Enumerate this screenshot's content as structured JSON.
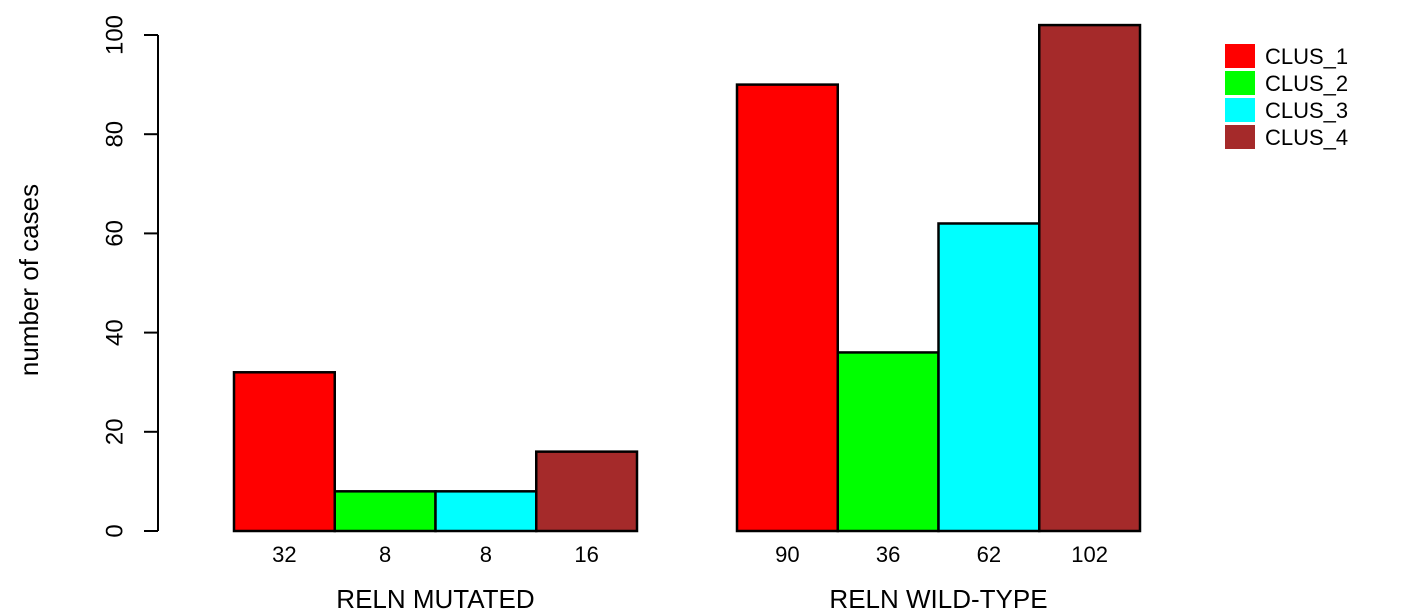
{
  "chart_data": {
    "type": "bar",
    "ylabel": "number of cases",
    "ylim": [
      0,
      100
    ],
    "yticks": [
      0,
      20,
      40,
      60,
      80,
      100
    ],
    "groups": [
      {
        "label": "RELN MUTATED",
        "values": [
          32,
          8,
          8,
          16
        ],
        "value_labels": [
          "32",
          "8",
          "8",
          "16"
        ]
      },
      {
        "label": "RELN WILD-TYPE",
        "values": [
          90,
          36,
          62,
          102
        ],
        "value_labels": [
          "90",
          "36",
          "62",
          "102"
        ]
      }
    ],
    "series": [
      {
        "name": "CLUS_1",
        "color": "#ff0000"
      },
      {
        "name": "CLUS_2",
        "color": "#00ff00"
      },
      {
        "name": "CLUS_3",
        "color": "#00ffff"
      },
      {
        "name": "CLUS_4",
        "color": "#a52a2a"
      }
    ],
    "legend_position": "top-right",
    "grid": false
  }
}
